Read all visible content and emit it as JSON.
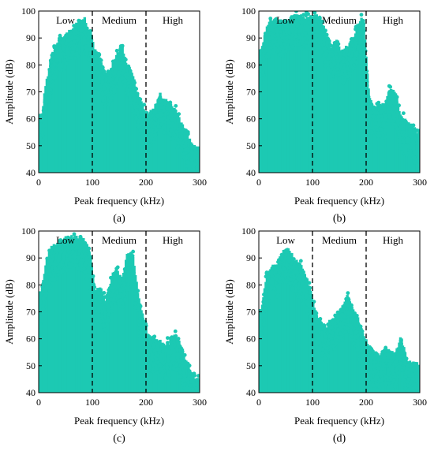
{
  "figure": {
    "accent_color": "#1cc9b3",
    "panels": [
      {
        "label": "(a)",
        "region_labels": [
          "Low",
          "Medium",
          "High"
        ]
      },
      {
        "label": "(b)",
        "region_labels": [
          "Low",
          "Medium",
          "High"
        ]
      },
      {
        "label": "(c)",
        "region_labels": [
          "Low",
          "Medium",
          "High"
        ]
      },
      {
        "label": "(d)",
        "region_labels": [
          "Low",
          "Medium",
          "High"
        ]
      }
    ]
  },
  "chart_data": [
    {
      "type": "scatter",
      "panel_label": "(a)",
      "xlabel": "Peak frequency (kHz)",
      "ylabel": "Amplitude (dB)",
      "xlim": [
        0,
        300
      ],
      "ylim": [
        40,
        100
      ],
      "xticks": [
        0,
        100,
        200,
        300
      ],
      "yticks": [
        40,
        50,
        60,
        70,
        80,
        90,
        100
      ],
      "dividers_x": [
        100,
        200
      ],
      "regions": [
        "Low",
        "Medium",
        "High"
      ],
      "grid": false,
      "series": [
        {
          "color": "#1cc9b3",
          "envelope_x": [
            5,
            15,
            25,
            35,
            45,
            55,
            65,
            75,
            85,
            95,
            105,
            115,
            125,
            135,
            145,
            155,
            165,
            175,
            185,
            195,
            205,
            215,
            225,
            235,
            245,
            255,
            265,
            275,
            285,
            295
          ],
          "envelope_max_amplitude": [
            62,
            75,
            85,
            89,
            91,
            93,
            95,
            97,
            98,
            94,
            86,
            83,
            76,
            79,
            85,
            88,
            81,
            77,
            70,
            65,
            63,
            65,
            70,
            68,
            66,
            64,
            60,
            56,
            52,
            50
          ]
        }
      ]
    },
    {
      "type": "scatter",
      "panel_label": "(b)",
      "xlabel": "Peak frequency (kHz)",
      "ylabel": "Amplitude (dB)",
      "xlim": [
        0,
        300
      ],
      "ylim": [
        40,
        100
      ],
      "xticks": [
        0,
        100,
        200,
        300
      ],
      "yticks": [
        40,
        50,
        60,
        70,
        80,
        90,
        100
      ],
      "dividers_x": [
        100,
        200
      ],
      "regions": [
        "Low",
        "Medium",
        "High"
      ],
      "grid": false,
      "series": [
        {
          "color": "#1cc9b3",
          "envelope_x": [
            5,
            15,
            25,
            35,
            45,
            55,
            65,
            75,
            85,
            95,
            105,
            115,
            125,
            135,
            145,
            155,
            165,
            175,
            185,
            195,
            205,
            215,
            225,
            235,
            245,
            255,
            265,
            275,
            285,
            295
          ],
          "envelope_max_amplitude": [
            86,
            95,
            98,
            97,
            97,
            98,
            99,
            99,
            99,
            99,
            99,
            99,
            92,
            87,
            90,
            86,
            88,
            90,
            97,
            98,
            70,
            65,
            66,
            66,
            72,
            70,
            62,
            60,
            58,
            56
          ]
        }
      ]
    },
    {
      "type": "scatter",
      "panel_label": "(c)",
      "xlabel": "Peak frequency (kHz)",
      "ylabel": "Amplitude (dB)",
      "xlim": [
        0,
        300
      ],
      "ylim": [
        40,
        100
      ],
      "xticks": [
        0,
        100,
        200,
        300
      ],
      "yticks": [
        40,
        50,
        60,
        70,
        80,
        90,
        100
      ],
      "dividers_x": [
        100,
        200
      ],
      "regions": [
        "Low",
        "Medium",
        "High"
      ],
      "grid": false,
      "series": [
        {
          "color": "#1cc9b3",
          "envelope_x": [
            5,
            15,
            25,
            35,
            45,
            55,
            65,
            75,
            85,
            95,
            105,
            115,
            125,
            135,
            145,
            155,
            165,
            175,
            185,
            195,
            205,
            215,
            225,
            235,
            245,
            255,
            265,
            275,
            285,
            295
          ],
          "envelope_max_amplitude": [
            78,
            90,
            95,
            96,
            98,
            99,
            99,
            99,
            98,
            93,
            78,
            80,
            75,
            83,
            88,
            82,
            92,
            93,
            78,
            68,
            62,
            61,
            60,
            58,
            60,
            62,
            58,
            53,
            48,
            46
          ]
        }
      ]
    },
    {
      "type": "scatter",
      "panel_label": "(d)",
      "xlabel": "Peak frequency (kHz)",
      "ylabel": "Amplitude (dB)",
      "xlim": [
        0,
        300
      ],
      "ylim": [
        40,
        100
      ],
      "xticks": [
        0,
        100,
        200,
        300
      ],
      "yticks": [
        40,
        50,
        60,
        70,
        80,
        90,
        100
      ],
      "dividers_x": [
        100,
        200
      ],
      "regions": [
        "Low",
        "Medium",
        "High"
      ],
      "grid": false,
      "series": [
        {
          "color": "#1cc9b3",
          "envelope_x": [
            5,
            15,
            25,
            35,
            45,
            55,
            65,
            75,
            85,
            95,
            105,
            115,
            125,
            135,
            145,
            155,
            165,
            175,
            185,
            195,
            205,
            215,
            225,
            235,
            245,
            255,
            265,
            275,
            285,
            295
          ],
          "envelope_max_amplitude": [
            72,
            85,
            88,
            89,
            93,
            95,
            91,
            89,
            86,
            80,
            71,
            68,
            65,
            68,
            70,
            72,
            77,
            72,
            68,
            62,
            58,
            56,
            54,
            57,
            56,
            55,
            62,
            53,
            52,
            52
          ]
        }
      ]
    }
  ]
}
